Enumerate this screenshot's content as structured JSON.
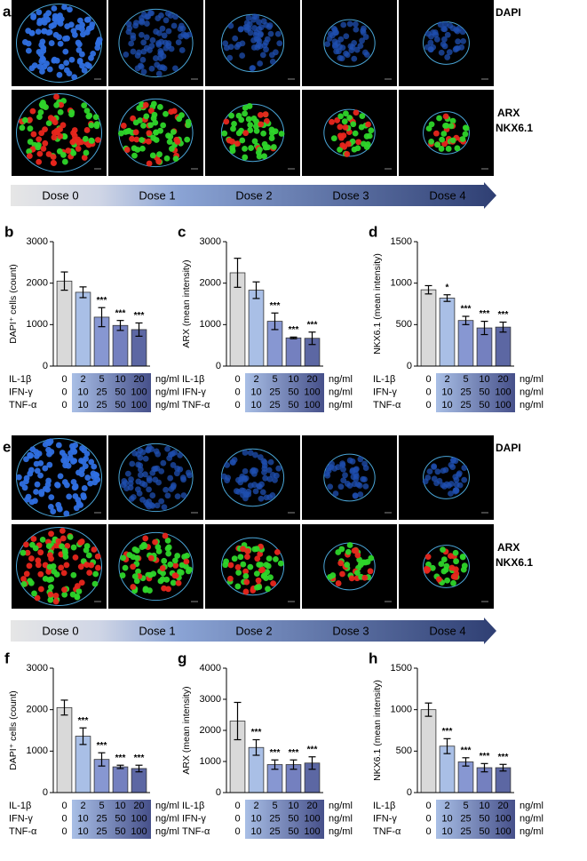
{
  "image_panels": [
    {
      "letter": "a",
      "channels": [
        "DAPI",
        "ARX",
        "NKX6.1"
      ],
      "doses": [
        "Dose 0",
        "Dose 1",
        "Dose 2",
        "Dose 3",
        "Dose 4"
      ]
    },
    {
      "letter": "e",
      "channels": [
        "DAPI",
        "ARX",
        "NKX6.1"
      ],
      "doses": [
        "Dose 0",
        "Dose 1",
        "Dose 2",
        "Dose 3",
        "Dose 4"
      ]
    }
  ],
  "chart_data": [
    {
      "type": "bar",
      "letter": "b",
      "y_label": "DAPI⁺ cells (count)",
      "ylim": [
        0,
        3000
      ],
      "yticks": [
        0,
        1000,
        2000,
        3000
      ],
      "values": [
        2050,
        1780,
        1180,
        980,
        880
      ],
      "errors": [
        220,
        130,
        230,
        120,
        160
      ],
      "annotations": [
        null,
        null,
        "***",
        "***",
        "***"
      ],
      "colors": [
        "#d9d9d9",
        "#a9bfe6",
        "#8797d2",
        "#7480bf",
        "#5c67a3"
      ],
      "dose_rows": [
        {
          "label": "IL-1β",
          "values": [
            0,
            2,
            5,
            10,
            20
          ],
          "unit": "ng/ml"
        },
        {
          "label": "IFN-γ",
          "values": [
            0,
            10,
            25,
            50,
            100
          ],
          "unit": "ng/ml"
        },
        {
          "label": "TNF-α",
          "values": [
            0,
            10,
            25,
            50,
            100
          ],
          "unit": "ng/ml"
        }
      ]
    },
    {
      "type": "bar",
      "letter": "c",
      "y_label": "ARX (mean intensity)",
      "ylim": [
        0,
        3000
      ],
      "yticks": [
        0,
        1000,
        2000,
        3000
      ],
      "values": [
        2250,
        1830,
        1080,
        680,
        670
      ],
      "errors": [
        350,
        200,
        200,
        20,
        150
      ],
      "annotations": [
        null,
        null,
        "***",
        "***",
        "***"
      ],
      "colors": [
        "#d9d9d9",
        "#a9bfe6",
        "#8797d2",
        "#7480bf",
        "#5c67a3"
      ],
      "dose_rows": [
        {
          "label": "IL-1β",
          "values": [
            0,
            2,
            5,
            10,
            20
          ],
          "unit": "ng/ml"
        },
        {
          "label": "IFN-γ",
          "values": [
            0,
            10,
            25,
            50,
            100
          ],
          "unit": "ng/ml"
        },
        {
          "label": "TNF-α",
          "values": [
            0,
            10,
            25,
            50,
            100
          ],
          "unit": "ng/ml"
        }
      ]
    },
    {
      "type": "bar",
      "letter": "d",
      "y_label": "NKX6.1 (mean intensity)",
      "ylim": [
        0,
        1500
      ],
      "yticks": [
        0,
        500,
        1000,
        1500
      ],
      "values": [
        920,
        820,
        550,
        460,
        470
      ],
      "errors": [
        50,
        40,
        50,
        80,
        60
      ],
      "annotations": [
        null,
        "*",
        "***",
        "***",
        "***"
      ],
      "colors": [
        "#d9d9d9",
        "#a9bfe6",
        "#8797d2",
        "#7480bf",
        "#5c67a3"
      ],
      "dose_rows": [
        {
          "label": "IL-1β",
          "values": [
            0,
            2,
            5,
            10,
            20
          ],
          "unit": "ng/ml"
        },
        {
          "label": "IFN-γ",
          "values": [
            0,
            10,
            25,
            50,
            100
          ],
          "unit": "ng/ml"
        },
        {
          "label": "TNF-α",
          "values": [
            0,
            10,
            25,
            50,
            100
          ],
          "unit": "ng/ml"
        }
      ]
    },
    {
      "type": "bar",
      "letter": "f",
      "y_label": "DAPI⁺ cells (count)",
      "ylim": [
        0,
        3000
      ],
      "yticks": [
        0,
        1000,
        2000,
        3000
      ],
      "values": [
        2050,
        1360,
        800,
        620,
        580
      ],
      "errors": [
        180,
        200,
        160,
        40,
        80
      ],
      "annotations": [
        null,
        "***",
        "***",
        "***",
        "***"
      ],
      "colors": [
        "#d9d9d9",
        "#a9bfe6",
        "#8797d2",
        "#7480bf",
        "#5c67a3"
      ],
      "dose_rows": [
        {
          "label": "IL-1β",
          "values": [
            0,
            2,
            5,
            10,
            20
          ],
          "unit": "ng/ml"
        },
        {
          "label": "IFN-γ",
          "values": [
            0,
            10,
            25,
            50,
            100
          ],
          "unit": "ng/ml"
        },
        {
          "label": "TNF-α",
          "values": [
            0,
            10,
            25,
            50,
            100
          ],
          "unit": "ng/ml"
        }
      ]
    },
    {
      "type": "bar",
      "letter": "g",
      "y_label": "ARX (mean intensity)",
      "ylim": [
        0,
        4000
      ],
      "yticks": [
        0,
        1000,
        2000,
        3000,
        4000
      ],
      "values": [
        2300,
        1450,
        900,
        900,
        950
      ],
      "errors": [
        600,
        250,
        150,
        150,
        200
      ],
      "annotations": [
        null,
        "***",
        "***",
        "***",
        "***"
      ],
      "colors": [
        "#d9d9d9",
        "#a9bfe6",
        "#8797d2",
        "#7480bf",
        "#5c67a3"
      ],
      "dose_rows": [
        {
          "label": "IL-1β",
          "values": [
            0,
            2,
            5,
            10,
            20
          ],
          "unit": "ng/ml"
        },
        {
          "label": "IFN-γ",
          "values": [
            0,
            10,
            25,
            50,
            100
          ],
          "unit": "ng/ml"
        },
        {
          "label": "TNF-α",
          "values": [
            0,
            10,
            25,
            50,
            100
          ],
          "unit": "ng/ml"
        }
      ]
    },
    {
      "type": "bar",
      "letter": "h",
      "y_label": "NKX6.1 (mean intensity)",
      "ylim": [
        0,
        1500
      ],
      "yticks": [
        0,
        500,
        1000,
        1500
      ],
      "values": [
        1000,
        560,
        370,
        300,
        300
      ],
      "errors": [
        80,
        90,
        50,
        50,
        40
      ],
      "annotations": [
        null,
        "***",
        "***",
        "***",
        "***"
      ],
      "colors": [
        "#d9d9d9",
        "#a9bfe6",
        "#8797d2",
        "#7480bf",
        "#5c67a3"
      ],
      "dose_rows": [
        {
          "label": "IL-1β",
          "values": [
            0,
            2,
            5,
            10,
            20
          ],
          "unit": "ng/ml"
        },
        {
          "label": "IFN-γ",
          "values": [
            0,
            10,
            25,
            50,
            100
          ],
          "unit": "ng/ml"
        },
        {
          "label": "TNF-α",
          "values": [
            0,
            10,
            25,
            50,
            100
          ],
          "unit": "ng/ml"
        }
      ]
    }
  ]
}
